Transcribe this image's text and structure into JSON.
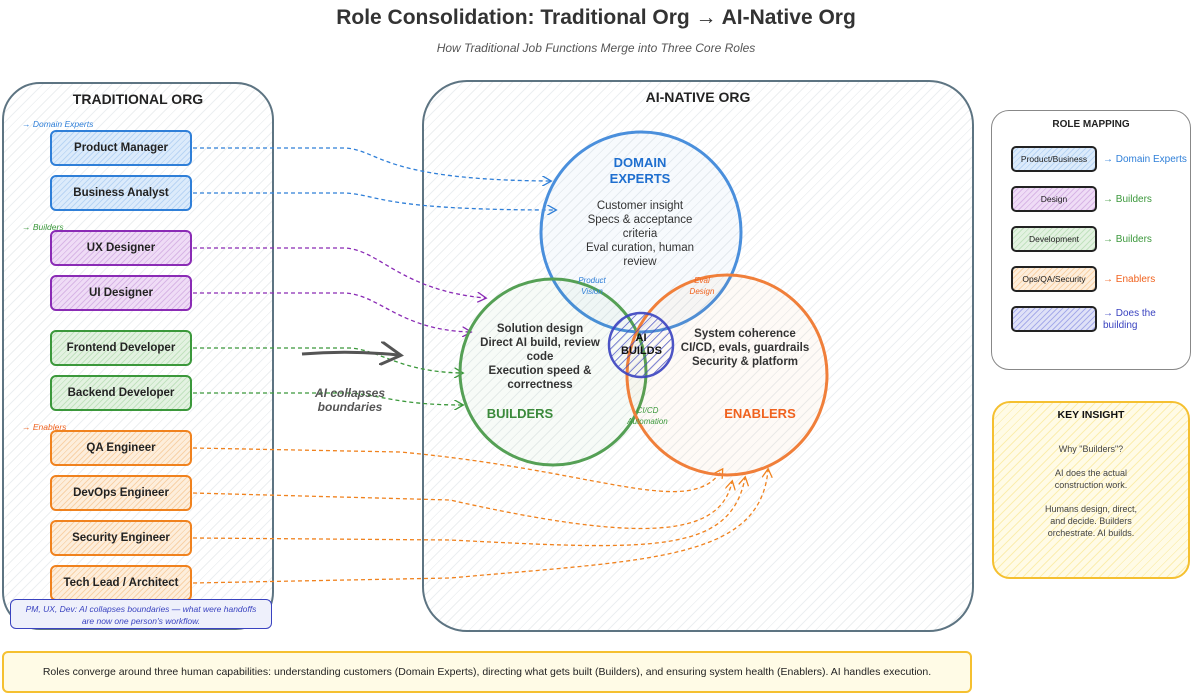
{
  "title": "Role Consolidation: Traditional Org → AI-Native Org",
  "subtitle": "How Traditional Job Functions Merge into Three Core Roles",
  "traditional": {
    "title": "TRADITIONAL ORG",
    "groups": {
      "domain": "→ Domain Experts",
      "builders": "→ Builders",
      "enablers": "→ Enablers"
    },
    "roles": [
      "Product Manager",
      "Business Analyst",
      "UX Designer",
      "UI Designer",
      "Frontend Developer",
      "Backend Developer",
      "QA Engineer",
      "DevOps Engineer",
      "Security Engineer",
      "Tech Lead / Architect"
    ],
    "note": "PM, UX, Dev: AI collapses boundaries — what were handoffs are now one person's workflow."
  },
  "collapse_label": "AI collapses boundaries",
  "ainative": {
    "title": "AI-NATIVE ORG",
    "domain": {
      "title": "DOMAIN EXPERTS",
      "lines": [
        "Customer insight",
        "Specs & acceptance criteria",
        "Eval curation, human review"
      ]
    },
    "builders": {
      "title": "BUILDERS",
      "lines": [
        "Solution design",
        "Direct AI build, review code",
        "Execution speed & correctness"
      ]
    },
    "enablers": {
      "title": "ENABLERS",
      "lines": [
        "System coherence",
        "CI/CD, evals, guardrails",
        "Security & platform"
      ]
    },
    "center": "AI BUILDS",
    "overlaps": {
      "product_vision": "Product Vision",
      "eval_design": "Eval Design",
      "cicd": "CI/CD Automation"
    }
  },
  "mapping": {
    "title": "ROLE MAPPING",
    "items": [
      {
        "box": "Product/Business",
        "target": "→ Domain Experts"
      },
      {
        "box": "Design",
        "target": "→ Builders"
      },
      {
        "box": "Development",
        "target": "→ Builders"
      },
      {
        "box": "Ops/QA/Security",
        "target": "→ Enablers"
      },
      {
        "box": "",
        "target": "→ Does the building"
      }
    ]
  },
  "insight": {
    "title": "KEY INSIGHT",
    "lines": [
      "Why \"Builders\"?",
      "AI does the actual construction work.",
      "Humans design, direct, and decide. Builders orchestrate. AI builds."
    ]
  },
  "footer": "Roles converge around three human capabilities: understanding customers (Domain Experts), directing what gets built (Builders), and ensuring system health (Enablers). AI handles execution.",
  "colors": {
    "blue": "#2f7fd8",
    "purple": "#8a2bb5",
    "green": "#3b983b",
    "orange": "#f0821e",
    "indigo": "#3a43c0",
    "gold": "#f5c030"
  }
}
